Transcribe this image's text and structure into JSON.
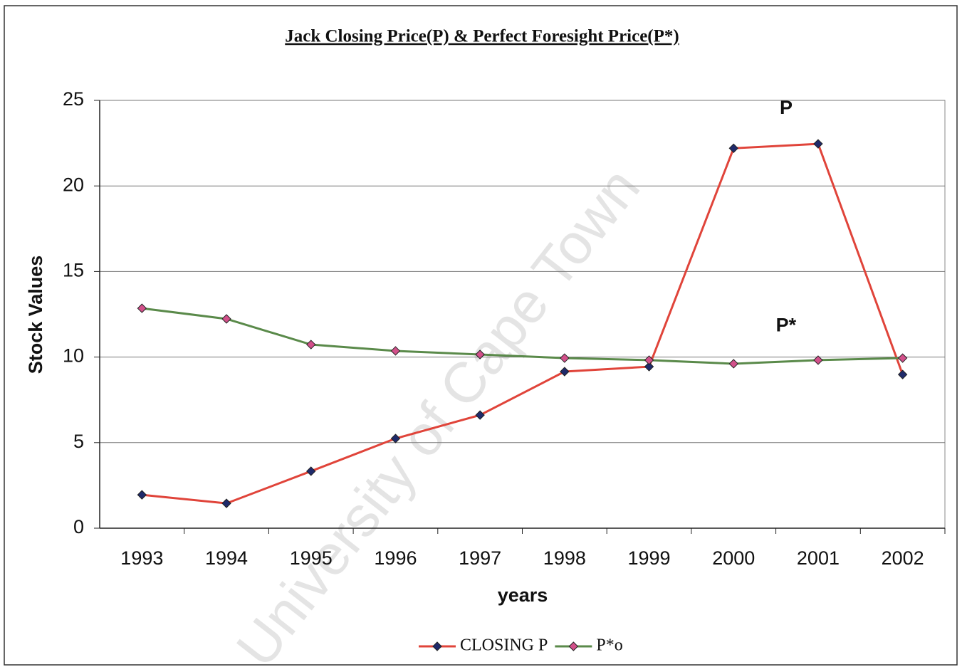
{
  "chart_data": {
    "type": "line",
    "title": "Jack Closing Price(P) & Perfect Foresight Price(P*)",
    "x_label": "years",
    "y_label": "Stock Values",
    "categories": [
      "1993",
      "1994",
      "1995",
      "1996",
      "1997",
      "1998",
      "1999",
      "2000",
      "2001",
      "2002"
    ],
    "series": [
      {
        "name": "CLOSING P",
        "color": "#e0443a",
        "marker_color": "#1f2a6b",
        "values": [
          1.95,
          1.45,
          3.33,
          5.24,
          6.61,
          9.15,
          9.44,
          22.2,
          22.46,
          8.98
        ]
      },
      {
        "name": "P*o",
        "color": "#5a8a4a",
        "marker_color": "#d2508a",
        "values": [
          12.85,
          12.23,
          10.73,
          10.36,
          10.15,
          9.94,
          9.82,
          9.61,
          9.82,
          9.94
        ]
      }
    ],
    "ylim": [
      0,
      25
    ],
    "yticks": [
      0,
      5,
      10,
      15,
      20,
      25
    ],
    "grid": true,
    "legend": "bottom",
    "annotations": [
      {
        "text": "P",
        "x": "2001",
        "y": 24.5
      },
      {
        "text": "P*",
        "x": "2001",
        "y": 11.8
      }
    ],
    "watermark": "University of Cape Town"
  }
}
